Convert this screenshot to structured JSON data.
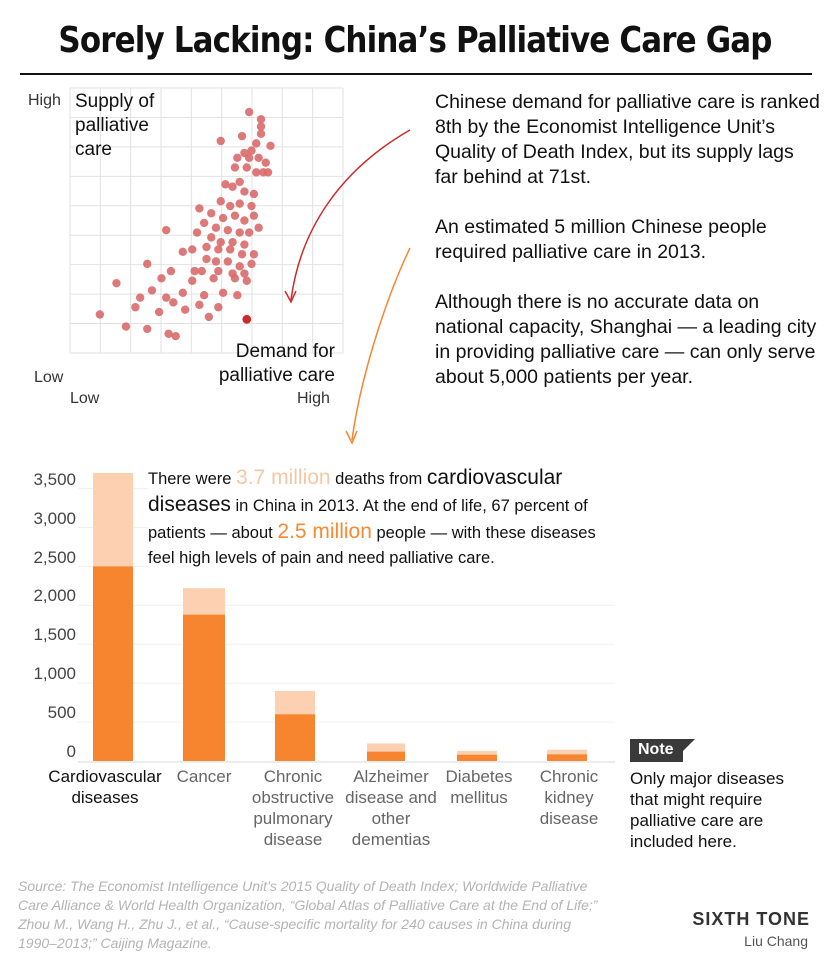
{
  "title": "Sorely Lacking: China’s Palliative Care Gap",
  "scatter": {
    "y_high": "High",
    "y_low": "Low",
    "x_low": "Low",
    "x_high": "High",
    "y_label": [
      "Supply of",
      "palliative",
      "care"
    ],
    "x_label": [
      "Demand for",
      "palliative care"
    ],
    "point_color": "#d96a6a",
    "highlight_color": "#cc2a2a"
  },
  "paragraphs": [
    "Chinese demand for palliative care is ranked 8th by the Economist Intelligence Unit’s Quality of Death Index, but its supply lags far behind at 71st.",
    "An estimated 5 million Chinese people required palliative care in 2013.",
    "Although there is no accurate data on national capacity, Shanghai — a leading city in providing palliative care — can only serve about 5,000 patients per year."
  ],
  "callout": {
    "t1": "There were ",
    "t2": "3.7 million",
    "t3": " deaths from ",
    "t4": "cardiovascular diseases",
    "t5": " in China in 2013. At the end of life, 67 percent of patients — about ",
    "t6": "2.5 million",
    "t7": " people — with these diseases feel high levels of pain and need palliative care."
  },
  "note": {
    "label": "Note",
    "text": "Only major diseases that might require palliative care are included here."
  },
  "source": "Source: The Economist Intelligence Unit’s 2015 Quality of Death Index; Worldwide Palliative Care Alliance & World Health Organization, “Global Atlas of Palliative Care at the End of Life;” Zhou M., Wang H., Zhu J., et al., “Cause-specific mortality for 240 causes in China during 1990–2013;” Caijing Magazine.",
  "brand": "SIXTH TONE",
  "author": "Liu Chang",
  "colors": {
    "deaths": "#fdd0b1",
    "palliative": "#f7852f",
    "arrow1": "#cc2a2a",
    "arrow2": "#f7852f"
  },
  "chart_data": [
    {
      "type": "scatter",
      "xlabel": "Demand for palliative care",
      "ylabel": "Supply of palliative care",
      "x_range": [
        "Low",
        "High"
      ],
      "y_range": [
        "Low",
        "High"
      ],
      "grid": true,
      "points": [
        [
          0.68,
          0.95
        ],
        [
          0.73,
          0.92
        ],
        [
          0.73,
          0.89
        ],
        [
          0.73,
          0.86
        ],
        [
          0.56,
          0.83
        ],
        [
          0.65,
          0.85
        ],
        [
          0.71,
          0.82
        ],
        [
          0.77,
          0.81
        ],
        [
          0.69,
          0.79
        ],
        [
          0.66,
          0.78
        ],
        [
          0.63,
          0.76
        ],
        [
          0.68,
          0.76
        ],
        [
          0.72,
          0.76
        ],
        [
          0.75,
          0.74
        ],
        [
          0.62,
          0.72
        ],
        [
          0.67,
          0.72
        ],
        [
          0.71,
          0.7
        ],
        [
          0.74,
          0.7
        ],
        [
          0.76,
          0.7
        ],
        [
          0.64,
          0.66
        ],
        [
          0.58,
          0.65
        ],
        [
          0.61,
          0.64
        ],
        [
          0.66,
          0.62
        ],
        [
          0.7,
          0.61
        ],
        [
          0.56,
          0.58
        ],
        [
          0.6,
          0.56
        ],
        [
          0.64,
          0.57
        ],
        [
          0.69,
          0.56
        ],
        [
          0.47,
          0.55
        ],
        [
          0.52,
          0.53
        ],
        [
          0.57,
          0.51
        ],
        [
          0.62,
          0.52
        ],
        [
          0.66,
          0.5
        ],
        [
          0.7,
          0.52
        ],
        [
          0.49,
          0.49
        ],
        [
          0.54,
          0.47
        ],
        [
          0.59,
          0.46
        ],
        [
          0.64,
          0.45
        ],
        [
          0.68,
          0.45
        ],
        [
          0.72,
          0.47
        ],
        [
          0.33,
          0.46
        ],
        [
          0.46,
          0.45
        ],
        [
          0.52,
          0.43
        ],
        [
          0.56,
          0.41
        ],
        [
          0.61,
          0.41
        ],
        [
          0.66,
          0.4
        ],
        [
          0.44,
          0.38
        ],
        [
          0.5,
          0.39
        ],
        [
          0.55,
          0.38
        ],
        [
          0.6,
          0.38
        ],
        [
          0.65,
          0.36
        ],
        [
          0.7,
          0.36
        ],
        [
          0.25,
          0.32
        ],
        [
          0.4,
          0.37
        ],
        [
          0.5,
          0.34
        ],
        [
          0.54,
          0.33
        ],
        [
          0.59,
          0.33
        ],
        [
          0.64,
          0.31
        ],
        [
          0.69,
          0.32
        ],
        [
          0.35,
          0.29
        ],
        [
          0.45,
          0.29
        ],
        [
          0.48,
          0.29
        ],
        [
          0.55,
          0.29
        ],
        [
          0.61,
          0.28
        ],
        [
          0.66,
          0.28
        ],
        [
          0.12,
          0.24
        ],
        [
          0.31,
          0.26
        ],
        [
          0.44,
          0.25
        ],
        [
          0.53,
          0.26
        ],
        [
          0.62,
          0.26
        ],
        [
          0.67,
          0.25
        ],
        [
          0.27,
          0.21
        ],
        [
          0.4,
          0.2
        ],
        [
          0.49,
          0.19
        ],
        [
          0.57,
          0.2
        ],
        [
          0.63,
          0.19
        ],
        [
          0.33,
          0.18
        ],
        [
          0.22,
          0.18
        ],
        [
          0.36,
          0.16
        ],
        [
          0.41,
          0.13
        ],
        [
          0.47,
          0.15
        ],
        [
          0.55,
          0.14
        ],
        [
          0.2,
          0.14
        ],
        [
          0.3,
          0.12
        ],
        [
          0.51,
          0.1
        ],
        [
          0.16,
          0.06
        ],
        [
          0.25,
          0.05
        ],
        [
          0.34,
          0.03
        ],
        [
          0.37,
          0.02
        ],
        [
          0.05,
          0.11
        ]
      ],
      "highlight": [
        0.67,
        0.09
      ]
    },
    {
      "type": "bar",
      "categories": [
        "Cardiovascular diseases",
        "Cancer",
        "Chronic obstructive pulmonary disease",
        "Alzheimer disease and other dementias",
        "Diabetes mellitus",
        "Chronic kidney disease"
      ],
      "series": [
        {
          "values": [
            3700,
            2220,
            900,
            225,
            130,
            145
          ]
        },
        {
          "values": [
            2500,
            1880,
            600,
            120,
            80,
            85
          ]
        }
      ],
      "yticks": [
        "3,500",
        "3,000",
        "2,500",
        "2,000",
        "1,500",
        "1,000",
        "500",
        "0"
      ],
      "ytick_values": [
        3500,
        3000,
        2500,
        2000,
        1500,
        1000,
        500,
        0
      ],
      "ylim": [
        0,
        3700
      ]
    }
  ]
}
